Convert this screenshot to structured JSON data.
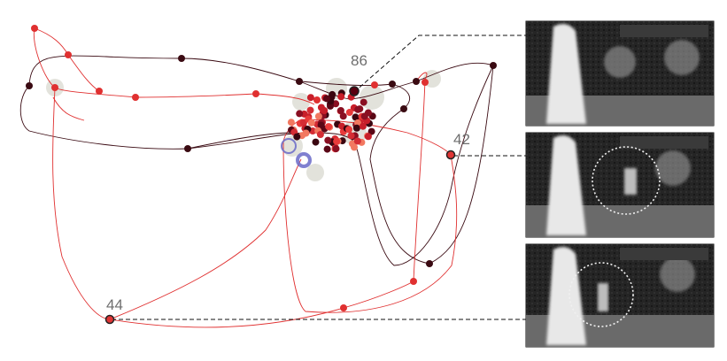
{
  "labels": {
    "frame_a": "86",
    "frame_b": "42",
    "frame_c": "44"
  },
  "colors": {
    "dark_trace": "#3a0a12",
    "red_trace": "#e03030",
    "halo": "#d8d8d0",
    "selection": "#6a6ac8",
    "frame_bg": "#1b1b1b"
  },
  "frames": [
    {
      "name": "frame-thumbnail-1",
      "annotation": ""
    },
    {
      "name": "frame-thumbnail-2",
      "annotation": "dotted-circle"
    },
    {
      "name": "frame-thumbnail-3",
      "annotation": "dotted-circle"
    }
  ]
}
